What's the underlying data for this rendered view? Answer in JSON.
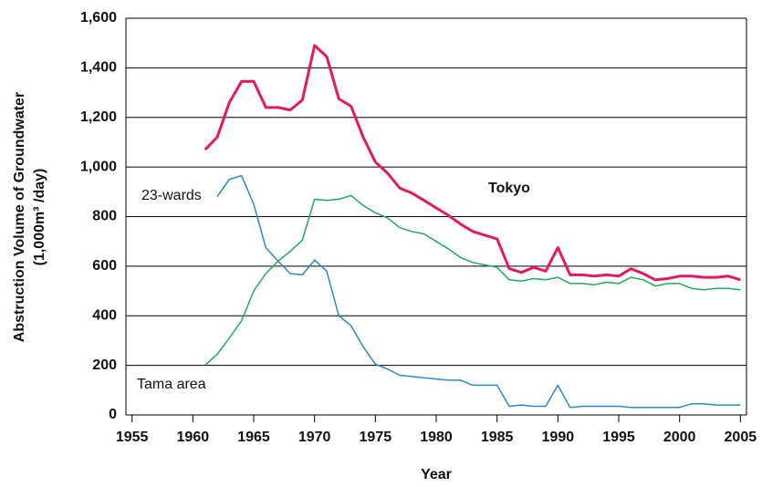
{
  "chart_data": {
    "type": "line",
    "x_label": "Year",
    "y_label": [
      "Abstruction Volume of Groundwater",
      "(1,000m³ /day)"
    ],
    "x": [
      1961,
      1962,
      1963,
      1964,
      1965,
      1966,
      1967,
      1968,
      1969,
      1970,
      1971,
      1972,
      1973,
      1974,
      1975,
      1976,
      1977,
      1978,
      1979,
      1980,
      1981,
      1982,
      1983,
      1984,
      1985,
      1986,
      1987,
      1988,
      1989,
      1990,
      1991,
      1992,
      1993,
      1994,
      1995,
      1996,
      1997,
      1998,
      1999,
      2000,
      2001,
      2002,
      2003,
      2004,
      2005
    ],
    "series": [
      {
        "name": "Tokyo",
        "color": "#e6195f",
        "width": 3,
        "values": [
          1070,
          1120,
          1260,
          1345,
          1345,
          1240,
          1240,
          1230,
          1270,
          1490,
          1445,
          1275,
          1245,
          1120,
          1020,
          975,
          915,
          895,
          865,
          835,
          805,
          770,
          740,
          725,
          710,
          590,
          575,
          595,
          580,
          675,
          565,
          565,
          560,
          565,
          560,
          590,
          570,
          545,
          550,
          560,
          560,
          555,
          555,
          560,
          545
        ]
      },
      {
        "name": "23-wards",
        "color": "#2a8ac8",
        "width": 1.5,
        "values": [
          null,
          880,
          950,
          965,
          850,
          675,
          620,
          570,
          565,
          625,
          580,
          400,
          360,
          275,
          205,
          185,
          160,
          155,
          150,
          145,
          140,
          140,
          120,
          120,
          120,
          35,
          40,
          35,
          35,
          120,
          30,
          35,
          35,
          35,
          35,
          30,
          30,
          30,
          30,
          30,
          45,
          45,
          40,
          40,
          40
        ]
      },
      {
        "name": "Tama area",
        "color": "#22aa5a",
        "width": 1.5,
        "values": [
          200,
          245,
          310,
          380,
          500,
          570,
          620,
          660,
          705,
          870,
          865,
          870,
          885,
          845,
          815,
          795,
          755,
          740,
          730,
          700,
          670,
          635,
          615,
          605,
          595,
          545,
          540,
          550,
          545,
          555,
          530,
          530,
          525,
          535,
          530,
          555,
          545,
          520,
          530,
          530,
          510,
          505,
          510,
          510,
          505
        ]
      }
    ],
    "xlim": [
      1954.5,
      2005.5
    ],
    "xticks": [
      1955,
      1960,
      1965,
      1970,
      1975,
      1980,
      1985,
      1990,
      1995,
      2000,
      2005
    ],
    "ylim": [
      0,
      1600
    ],
    "yticks": [
      0,
      200,
      400,
      600,
      800,
      {
        "value": 1000,
        "label": "1,000"
      },
      {
        "value": 1200,
        "label": "1,200"
      },
      {
        "value": 1400,
        "label": "1,400"
      },
      {
        "value": 1600,
        "label": "1,600"
      }
    ],
    "grid": true
  }
}
